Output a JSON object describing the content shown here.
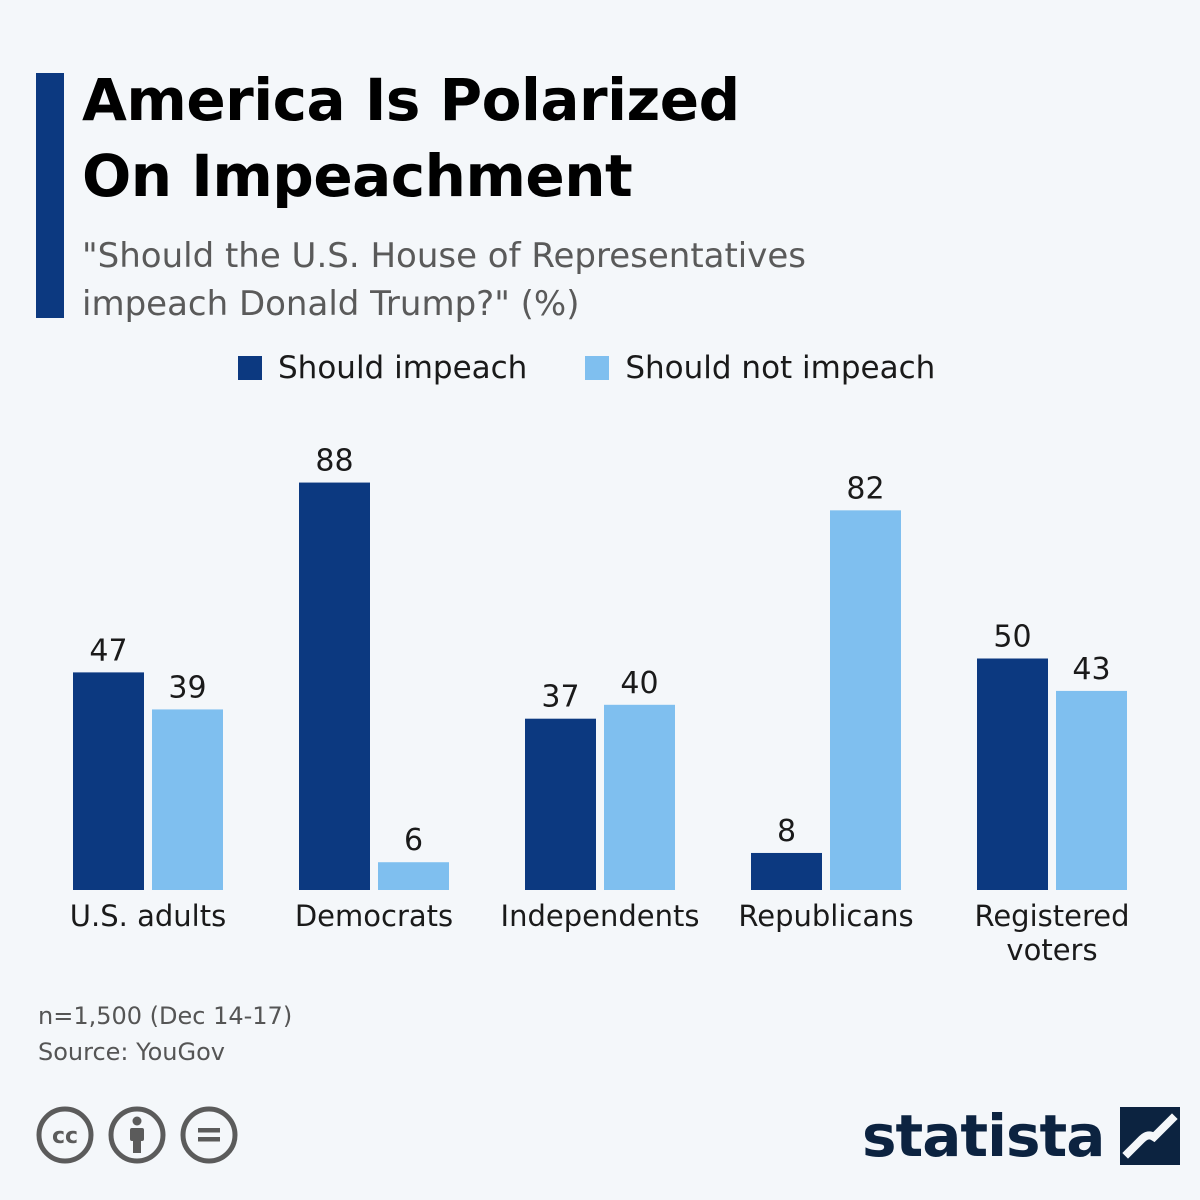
{
  "header": {
    "title_line1": "America Is Polarized",
    "title_line2": "On Impeachment",
    "subtitle_line1": "\"Should the U.S. House of Representatives",
    "subtitle_line2": "impeach Donald Trump?\" (%)"
  },
  "colors": {
    "accent": "#0c3980",
    "should_impeach": "#0c3980",
    "should_not_impeach": "#7fbfef",
    "brand": "#0c2340"
  },
  "legend": [
    {
      "label": "Should impeach",
      "color": "#0c3980"
    },
    {
      "label": "Should not impeach",
      "color": "#7fbfef"
    }
  ],
  "chart_data": {
    "type": "bar",
    "title": "America Is Polarized On Impeachment",
    "subtitle": "\"Should the U.S. House of Representatives impeach Donald Trump?\" (%)",
    "categories": [
      "U.S. adults",
      "Democrats",
      "Independents",
      "Republicans",
      "Registered voters"
    ],
    "category_lines": [
      [
        "U.S. adults"
      ],
      [
        "Democrats"
      ],
      [
        "Independents"
      ],
      [
        "Republicans"
      ],
      [
        "Registered",
        "voters"
      ]
    ],
    "series": [
      {
        "name": "Should impeach",
        "values": [
          47,
          88,
          37,
          8,
          50
        ],
        "color": "#0c3980"
      },
      {
        "name": "Should not impeach",
        "values": [
          39,
          6,
          40,
          82,
          43
        ],
        "color": "#7fbfef"
      }
    ],
    "ylim": [
      0,
      100
    ],
    "xlabel": "",
    "ylabel": "",
    "grid": false,
    "legend_position": "top"
  },
  "footer": {
    "note": "n=1,500 (Dec 14-17)",
    "source": "Source: YouGov"
  },
  "license_icons": [
    "creative-commons-icon",
    "attribution-icon",
    "no-derivatives-icon"
  ],
  "brand": {
    "name": "statista",
    "logo_icon": "statista-logo-icon"
  }
}
